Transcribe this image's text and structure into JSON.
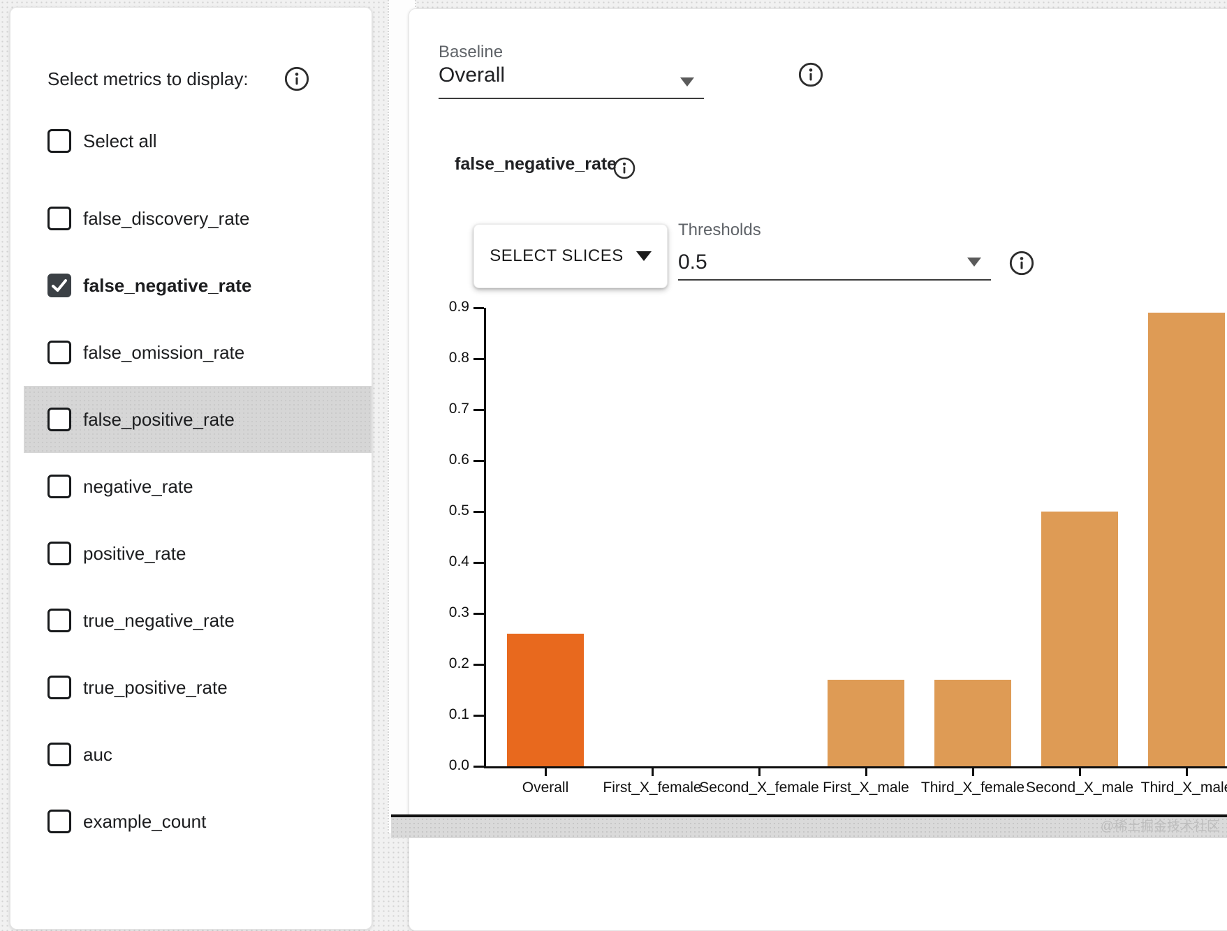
{
  "sidebar": {
    "title": "Select metrics to display:",
    "items": [
      {
        "label": "Select all",
        "checked": false,
        "bold": false,
        "highlighted": false,
        "gap_after": true
      },
      {
        "label": "false_discovery_rate",
        "checked": false,
        "bold": false,
        "highlighted": false,
        "gap_after": false
      },
      {
        "label": "false_negative_rate",
        "checked": true,
        "bold": true,
        "highlighted": false,
        "gap_after": false
      },
      {
        "label": "false_omission_rate",
        "checked": false,
        "bold": false,
        "highlighted": false,
        "gap_after": false
      },
      {
        "label": "false_positive_rate",
        "checked": false,
        "bold": false,
        "highlighted": true,
        "gap_after": false
      },
      {
        "label": "negative_rate",
        "checked": false,
        "bold": false,
        "highlighted": false,
        "gap_after": false
      },
      {
        "label": "positive_rate",
        "checked": false,
        "bold": false,
        "highlighted": false,
        "gap_after": false
      },
      {
        "label": "true_negative_rate",
        "checked": false,
        "bold": false,
        "highlighted": false,
        "gap_after": false
      },
      {
        "label": "true_positive_rate",
        "checked": false,
        "bold": false,
        "highlighted": false,
        "gap_after": false
      },
      {
        "label": "auc",
        "checked": false,
        "bold": false,
        "highlighted": false,
        "gap_after": false
      },
      {
        "label": "example_count",
        "checked": false,
        "bold": false,
        "highlighted": false,
        "gap_after": false
      }
    ]
  },
  "main": {
    "baseline_label": "Baseline",
    "baseline_value": "Overall",
    "metric_title": "false_negative_rate",
    "select_slices_label": "SELECT SLICES",
    "thresholds_label": "Thresholds",
    "thresholds_value": "0.5"
  },
  "chart_data": {
    "type": "bar",
    "title": "false_negative_rate",
    "categories": [
      "Overall",
      "First_X_female",
      "Second_X_female",
      "First_X_male",
      "Third_X_female",
      "Second_X_male",
      "Third_X_male"
    ],
    "values": [
      0.26,
      0,
      0,
      0.17,
      0.17,
      0.5,
      0.89
    ],
    "baseline_index": 0,
    "ylim": [
      0,
      0.9
    ],
    "ytick_labels": [
      "0.0",
      "0.1",
      "0.2",
      "0.3",
      "0.4",
      "0.5",
      "0.6",
      "0.7",
      "0.8",
      "0.9"
    ],
    "bar_color_baseline": "#e8691e",
    "bar_color_default": "#de9b55",
    "grid": false,
    "legend": "none",
    "xlabel": "",
    "ylabel": ""
  },
  "watermark": "@稀土掘金技术社区"
}
